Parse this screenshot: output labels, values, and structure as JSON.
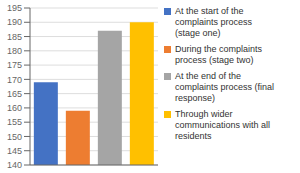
{
  "chart_data": {
    "type": "bar",
    "categories": [
      null,
      null,
      null,
      null
    ],
    "series": [
      {
        "name": "At the start of the\ncomplaints process\n(stage one)",
        "color": "#4472C4",
        "values": [
          169,
          null,
          null,
          null
        ]
      },
      {
        "name": "During the complaints\nprocess (stage two)",
        "color": "#ED7D31",
        "values": [
          null,
          159,
          null,
          null
        ]
      },
      {
        "name": "At the end of the\ncomplaints process (final\nresponse)",
        "color": "#A5A5A5",
        "values": [
          null,
          null,
          187,
          null
        ]
      },
      {
        "name": "Through wider\ncommunications with all\nresidents",
        "color": "#FFC000",
        "values": [
          null,
          null,
          null,
          190
        ]
      }
    ],
    "ylim": [
      140,
      195
    ],
    "yticks": [
      140,
      145,
      150,
      155,
      160,
      165,
      170,
      175,
      180,
      185,
      190,
      195
    ],
    "grid": true,
    "tick_labels": "y",
    "legend": "right"
  }
}
